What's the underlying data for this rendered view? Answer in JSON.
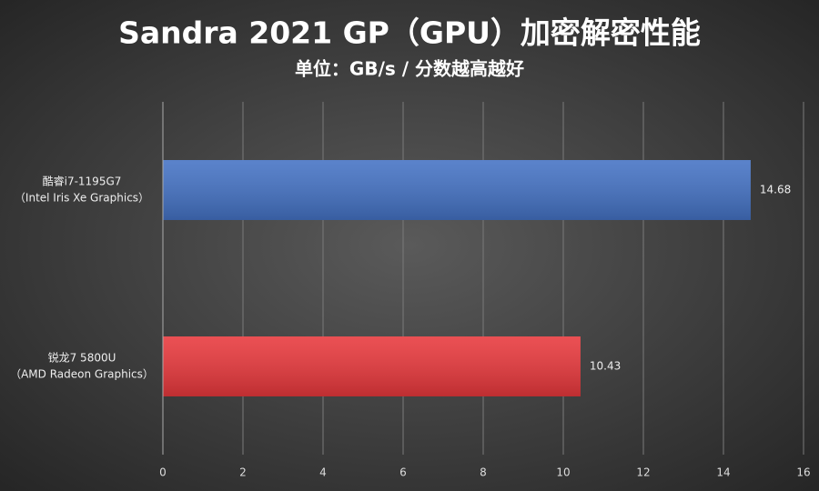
{
  "chart_data": {
    "type": "hbar",
    "title": "Sandra 2021 GP（GPU）加密解密性能",
    "subtitle": "单位：GB/s / 分数越高越好",
    "categories": [
      [
        "酷睿i7-1195G7",
        "（Intel Iris Xe Graphics）"
      ],
      [
        "锐龙7 5800U",
        "（AMD Radeon Graphics）"
      ]
    ],
    "values": [
      14.68,
      10.43
    ],
    "colors": [
      "#4472c4",
      "#e8383c"
    ],
    "xlim": [
      0,
      16
    ],
    "xticks": [
      0,
      2,
      4,
      6,
      8,
      10,
      12,
      14,
      16
    ],
    "grid": true
  }
}
